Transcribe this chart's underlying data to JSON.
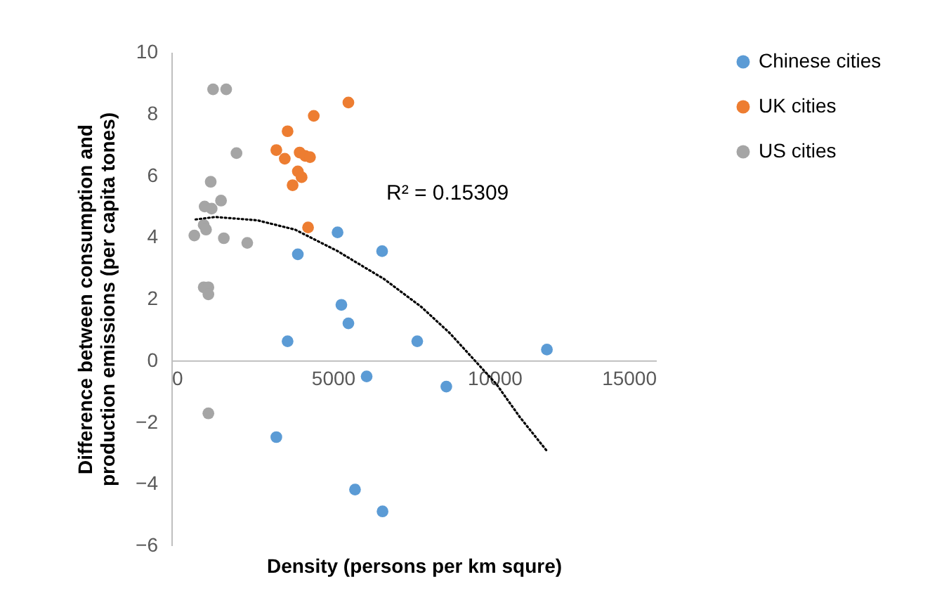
{
  "chart_data": {
    "type": "scatter",
    "xlabel": "Density  (persons per km squre)",
    "ylabel": "Difference between consumption and production emissions (per capita tones)",
    "xlim": [
      0,
      15000
    ],
    "xticks": [
      0,
      {
        "value": 5000,
        "label": "5000"
      },
      {
        "value": 10000,
        "label": "10000"
      },
      {
        "value": 15000,
        "label": "15000"
      }
    ],
    "ylim": [
      -6,
      10
    ],
    "yticks": [
      -6,
      -4,
      -2,
      0,
      2,
      4,
      6,
      8,
      10
    ],
    "marker": "circle",
    "legend": "right",
    "annotations": [
      "R² = 0.15309"
    ],
    "series": [
      {
        "name": "Chinese cities",
        "color": "#5b9bd5",
        "x": [
          5143,
          6522,
          3913,
          5261,
          5478,
          3596,
          7609,
          6043,
          8509,
          3248,
          5683,
          6535,
          11622
        ],
        "values": [
          4.15,
          3.54,
          3.44,
          1.8,
          1.2,
          0.62,
          0.62,
          -0.52,
          -0.85,
          -2.49,
          -4.19,
          -4.9,
          0.35
        ]
      },
      {
        "name": "UK cities",
        "color": "#ed7d31",
        "x": [
          5478,
          4406,
          3596,
          3248,
          3509,
          3970,
          4143,
          4290,
          3913,
          4030,
          3752,
          4230
        ],
        "values": [
          8.36,
          7.93,
          7.43,
          6.82,
          6.54,
          6.74,
          6.63,
          6.59,
          6.13,
          5.94,
          5.68,
          4.31
        ]
      },
      {
        "name": "US cities",
        "color": "#a5a5a5",
        "x": [
          1290,
          1696,
          2015,
          1217,
          1536,
          1029,
          1246,
          1000,
          1072,
          710,
          1623,
          2348,
          1000,
          1145,
          1145,
          1145
        ],
        "values": [
          8.79,
          8.79,
          6.72,
          5.79,
          5.18,
          4.99,
          4.92,
          4.39,
          4.24,
          4.05,
          3.96,
          3.81,
          2.37,
          2.37,
          2.14,
          -1.72
        ]
      },
      {
        "type": "line",
        "color": "#000000",
        "line_style": "dotted",
        "marker": "none",
        "x": [
          750,
          1362,
          2665,
          3826,
          5130,
          6578,
          7739,
          8609,
          9333,
          10058,
          10783,
          11652
        ],
        "values": [
          4.57,
          4.65,
          4.54,
          4.24,
          3.55,
          2.64,
          1.73,
          0.89,
          0.06,
          -0.77,
          -1.84,
          -2.98
        ]
      }
    ]
  }
}
